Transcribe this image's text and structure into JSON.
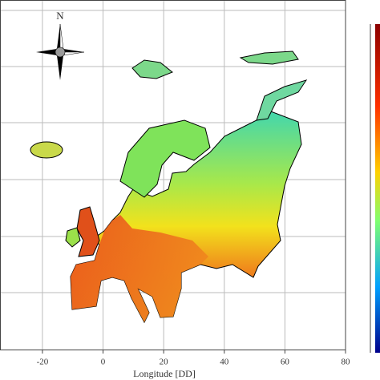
{
  "map": {
    "compass": "N",
    "xlabel": "Longitude [DD]",
    "xlim": [
      -34,
      80
    ],
    "xticks": [
      -20,
      0,
      20,
      40,
      60,
      80
    ]
  }
}
